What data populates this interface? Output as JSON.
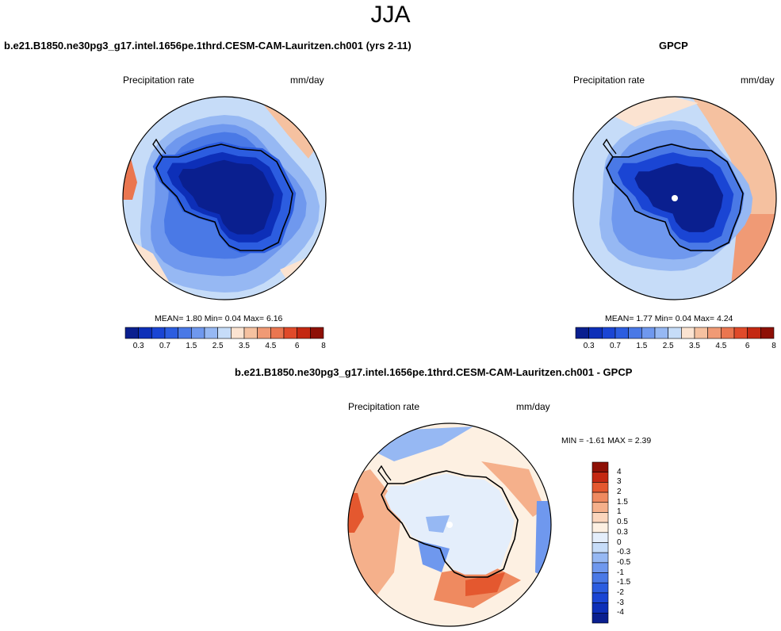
{
  "title": "JJA",
  "palette": {
    "abs": [
      "#0a1f8f",
      "#0d2fb8",
      "#1a45d4",
      "#2c5de0",
      "#4a79e6",
      "#6f98ee",
      "#96b8f3",
      "#c6dcf8",
      "#fbe3d1",
      "#f5c1a0",
      "#f09a75",
      "#ea7650",
      "#e04a2a",
      "#c42812",
      "#8e1006"
    ],
    "diff": [
      "#0a1f8f",
      "#0d2fb8",
      "#1a45d4",
      "#2c5de0",
      "#4a79e6",
      "#6f98ee",
      "#96b8f3",
      "#c6dcf8",
      "#e4eefb",
      "#fdf0e2",
      "#fbd6bd",
      "#f5b08b",
      "#ef8a60",
      "#e4582f",
      "#c42812",
      "#8e1006"
    ],
    "coast": "#000000"
  },
  "panels": [
    {
      "title": "b.e21.B1850.ne30pg3_g17.intel.1656pe.1thrd.CESM-CAM-Lauritzen.ch001 (yrs 2-11)",
      "left_label": "Precipitation rate",
      "right_label": "mm/day",
      "stats": "MEAN=  1.80  Min=  0.04  Max=  6.16",
      "colorbar_ticks": [
        "0.3",
        "0.7",
        "1.5",
        "2.5",
        "3.5",
        "4.5",
        "6",
        "8"
      ]
    },
    {
      "title": "GPCP",
      "left_label": "Precipitation rate",
      "right_label": "mm/day",
      "stats": "MEAN=  1.77  Min=  0.04  Max=  4.24",
      "colorbar_ticks": [
        "0.3",
        "0.7",
        "1.5",
        "2.5",
        "3.5",
        "4.5",
        "6",
        "8"
      ]
    },
    {
      "title": "b.e21.B1850.ne30pg3_g17.intel.1656pe.1thrd.CESM-CAM-Lauritzen.ch001 - GPCP",
      "left_label": "Precipitation rate",
      "right_label": "mm/day",
      "stats": "MIN =  -1.61  MAX =   2.39",
      "colorbar_ticks": [
        "4",
        "3",
        "2",
        "1.5",
        "1",
        "0.5",
        "0.3",
        "0",
        "-0.3",
        "-0.5",
        "-1",
        "-1.5",
        "-2",
        "-3",
        "-4"
      ]
    }
  ]
}
